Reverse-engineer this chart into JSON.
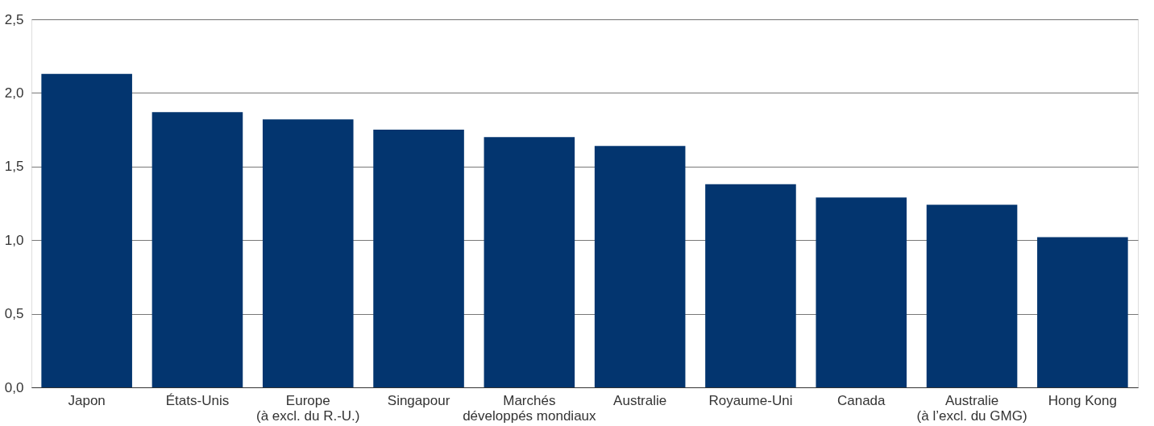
{
  "chart_data": {
    "type": "bar",
    "categories": [
      "Japon",
      "États-Unis",
      "Europe\n(à excl. du R.-U.)",
      "Singapour",
      "Marchés\ndéveloppés mondiaux",
      "Australie",
      "Royaume-Uni",
      "Canada",
      "Australie\n(à l’excl. du GMG)",
      "Hong Kong"
    ],
    "values": [
      2.13,
      1.87,
      1.82,
      1.75,
      1.7,
      1.64,
      1.38,
      1.29,
      1.24,
      1.02
    ],
    "color": "#03356f",
    "ylim": [
      0,
      2.5
    ],
    "yticks": [
      {
        "value": 0,
        "label": "0,0"
      },
      {
        "value": 0.5,
        "label": "0,5"
      },
      {
        "value": 1,
        "label": "1,0"
      },
      {
        "value": 1.5,
        "label": "1,5"
      },
      {
        "value": 2,
        "label": "2,0"
      },
      {
        "value": 2.5,
        "label": "2,5"
      }
    ],
    "grid": "y"
  }
}
